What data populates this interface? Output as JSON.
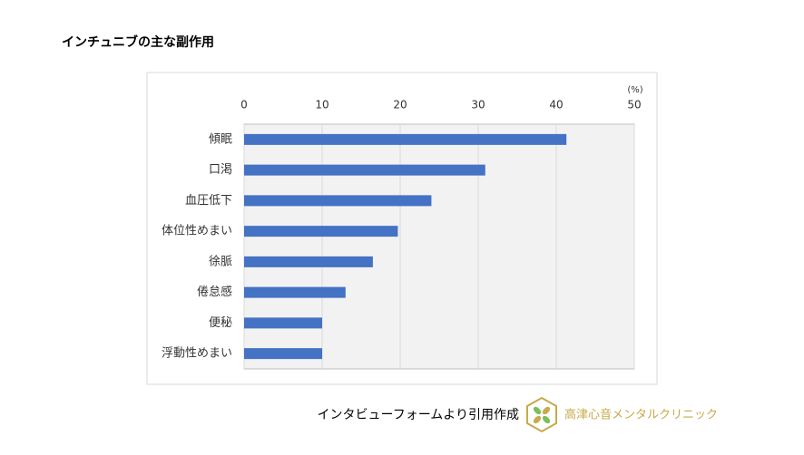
{
  "chart_data": {
    "type": "barh",
    "title": "インチュニブの主な副作用",
    "unit_label": "(%)",
    "categories": [
      "傾眠",
      "口渇",
      "血圧低下",
      "体位性めまい",
      "徐脈",
      "倦怠感",
      "便秘",
      "浮動性めまい"
    ],
    "values": [
      41.3,
      30.9,
      24.0,
      19.7,
      16.5,
      13.0,
      10.0,
      10.0
    ],
    "color": "#4472c4",
    "xlim": [
      0,
      50
    ],
    "xticks": [
      0,
      10,
      20,
      30,
      40,
      50
    ],
    "grid": true
  },
  "footer": {
    "source": "インタビューフォームより引用作成",
    "brand": "高津心音メンタルクリニック"
  }
}
